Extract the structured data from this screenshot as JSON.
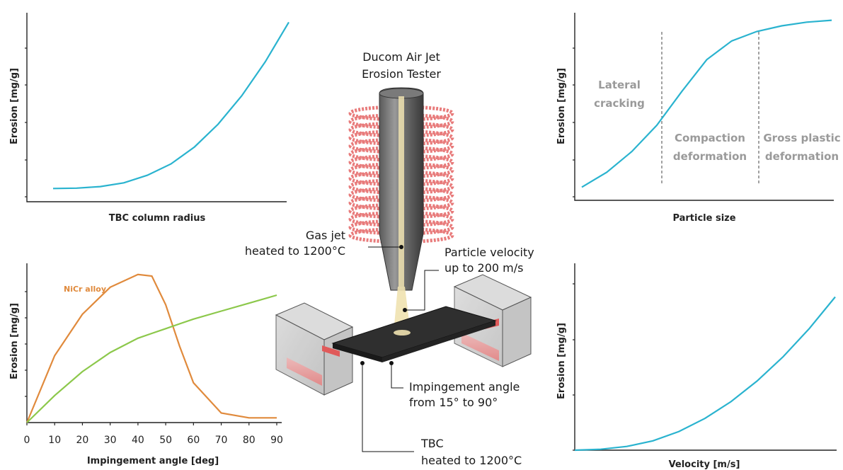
{
  "colors": {
    "curve_blue": "#2ab3cf",
    "orange": "#e08a3c",
    "green": "#8cc84b",
    "coil": "#e87b7b",
    "nozzle": "#4a4a4a",
    "jet": "#efe2b0"
  },
  "diagram": {
    "tester_title_line1": "Ducom Air Jet",
    "tester_title_line2": "Erosion Tester",
    "gas_jet_line1": "Gas jet",
    "gas_jet_line2": "heated to 1200°C",
    "velocity_line1": "Particle velocity",
    "velocity_line2": "up to 200 m/s",
    "angle_line1": "Impingement angle",
    "angle_line2": "from 15° to 90°",
    "tbc_line1": "TBC",
    "tbc_line2": "heated to 1200°C"
  },
  "chart_data": [
    {
      "type": "line",
      "xlabel": "TBC column radius",
      "ylabel": "Erosion [mg/g]",
      "x": [
        0.0,
        0.1,
        0.2,
        0.3,
        0.4,
        0.5,
        0.6,
        0.7,
        0.8,
        0.9,
        1.0
      ],
      "series": [
        {
          "values": [
            0.07,
            0.072,
            0.08,
            0.1,
            0.14,
            0.2,
            0.29,
            0.41,
            0.56,
            0.74,
            0.95
          ]
        }
      ]
    },
    {
      "type": "line",
      "xlabel": "Particle size",
      "ylabel": "Erosion [mg/g]",
      "zones": [
        "Lateral cracking",
        "Compaction deformation",
        "Gross plastic deformation"
      ],
      "zone_label_lines": [
        [
          "Lateral",
          "cracking"
        ],
        [
          "Compaction",
          "deformation"
        ],
        [
          "Gross plastic",
          "deformation"
        ]
      ],
      "x": [
        0.0,
        0.1,
        0.2,
        0.3,
        0.4,
        0.5,
        0.6,
        0.7,
        0.8,
        0.9,
        1.0
      ],
      "series": [
        {
          "values": [
            0.07,
            0.15,
            0.26,
            0.4,
            0.58,
            0.75,
            0.85,
            0.9,
            0.93,
            0.95,
            0.96
          ]
        }
      ]
    },
    {
      "type": "line",
      "xlabel": "Impingement angle [deg]",
      "ylabel": "Erosion [mg/g]",
      "xlim": [
        0,
        90
      ],
      "xticks": [
        "0",
        "10",
        "20",
        "30",
        "40",
        "50",
        "60",
        "70",
        "80",
        "90"
      ],
      "x": [
        0,
        10,
        20,
        30,
        40,
        45,
        50,
        55,
        60,
        70,
        80,
        90
      ],
      "series": [
        {
          "name": "NiCr alloy",
          "color": "orange",
          "values": [
            0.0,
            0.42,
            0.68,
            0.85,
            0.93,
            0.92,
            0.74,
            0.48,
            0.25,
            0.06,
            0.03,
            0.03
          ]
        },
        {
          "color": "green",
          "values": [
            0.0,
            0.17,
            0.32,
            0.44,
            0.53,
            0.56,
            0.59,
            0.62,
            0.65,
            0.7,
            0.75,
            0.8
          ]
        }
      ]
    },
    {
      "type": "line",
      "xlabel": "Velocity [m/s]",
      "ylabel": "Erosion [mg/g]",
      "x": [
        0.0,
        0.1,
        0.2,
        0.3,
        0.4,
        0.5,
        0.6,
        0.7,
        0.8,
        0.9,
        1.0
      ],
      "series": [
        {
          "values": [
            0.0,
            0.005,
            0.02,
            0.05,
            0.1,
            0.17,
            0.26,
            0.37,
            0.5,
            0.65,
            0.82
          ]
        }
      ]
    }
  ]
}
